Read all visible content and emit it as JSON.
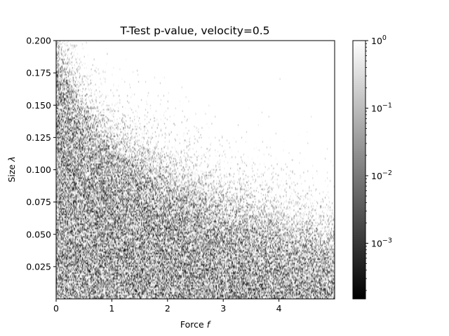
{
  "chart_data": {
    "type": "heatmap",
    "title": "T-Test p-value, velocity=0.5",
    "xlabel": "Force",
    "xlabel_var": "f",
    "ylabel": "Size",
    "ylabel_var": "λ",
    "xlim": [
      0,
      5
    ],
    "ylim": [
      0,
      0.2
    ],
    "x_ticks": [
      0,
      1,
      2,
      3,
      4
    ],
    "x_tick_labels": [
      "0",
      "1",
      "2",
      "3",
      "4"
    ],
    "y_ticks": [
      0.025,
      0.05,
      0.075,
      0.1,
      0.125,
      0.15,
      0.175,
      0.2
    ],
    "y_tick_labels": [
      "0.025",
      "0.050",
      "0.075",
      "0.100",
      "0.125",
      "0.150",
      "0.175",
      "0.200"
    ],
    "colorbar": {
      "scale": "log",
      "colormap": "gray",
      "range": [
        0.00015,
        1
      ],
      "ticks": [
        0.001,
        0.01,
        0.1,
        1
      ],
      "tick_labels": [
        {
          "base": "10",
          "exp": "−3"
        },
        {
          "base": "10",
          "exp": "−2"
        },
        {
          "base": "10",
          "exp": "−1"
        },
        {
          "base": "10",
          "exp": "0"
        }
      ]
    },
    "pattern": {
      "description_value": "significance boundary: dark (low p) region below",
      "boundary_size_at_force": [
        [
          0,
          0.2
        ],
        [
          0.5,
          0.15
        ],
        [
          1,
          0.128
        ],
        [
          2,
          0.1
        ],
        [
          3,
          0.078
        ],
        [
          4,
          0.062
        ],
        [
          5,
          0.05
        ]
      ]
    },
    "grid": false
  }
}
